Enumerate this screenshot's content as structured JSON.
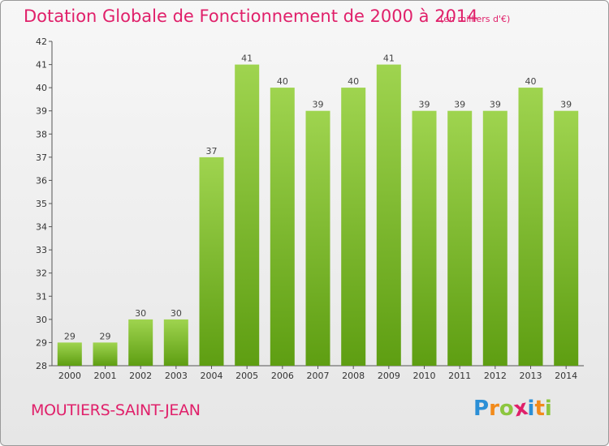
{
  "title": "Dotation Globale de Fonctionnement de 2000 à 2014",
  "unit_note": "(en milliers d'€)",
  "commune": "MOUTIERS-SAINT-JEAN",
  "logo": {
    "letters": [
      "P",
      "r",
      "o",
      "x",
      "i",
      "t",
      "i"
    ],
    "colors": [
      "#2b8fd6",
      "#f28a1a",
      "#8cc63f",
      "#e0206a",
      "#2b8fd6",
      "#f28a1a",
      "#8cc63f"
    ]
  },
  "colors": {
    "bar_top": "#9fd44f",
    "bar_bottom": "#5e9e12",
    "title": "#e0206a"
  },
  "chart_data": {
    "type": "bar",
    "categories": [
      "2000",
      "2001",
      "2002",
      "2003",
      "2004",
      "2005",
      "2006",
      "2007",
      "2008",
      "2009",
      "2010",
      "2011",
      "2012",
      "2013",
      "2014"
    ],
    "values": [
      29,
      29,
      30,
      30,
      37,
      41,
      40,
      39,
      40,
      41,
      39,
      39,
      39,
      40,
      39
    ],
    "ylim": [
      28,
      42
    ],
    "yticks": [
      28,
      29,
      30,
      31,
      32,
      33,
      34,
      35,
      36,
      37,
      38,
      39,
      40,
      41,
      42
    ],
    "grid": false,
    "data_labels": true
  }
}
